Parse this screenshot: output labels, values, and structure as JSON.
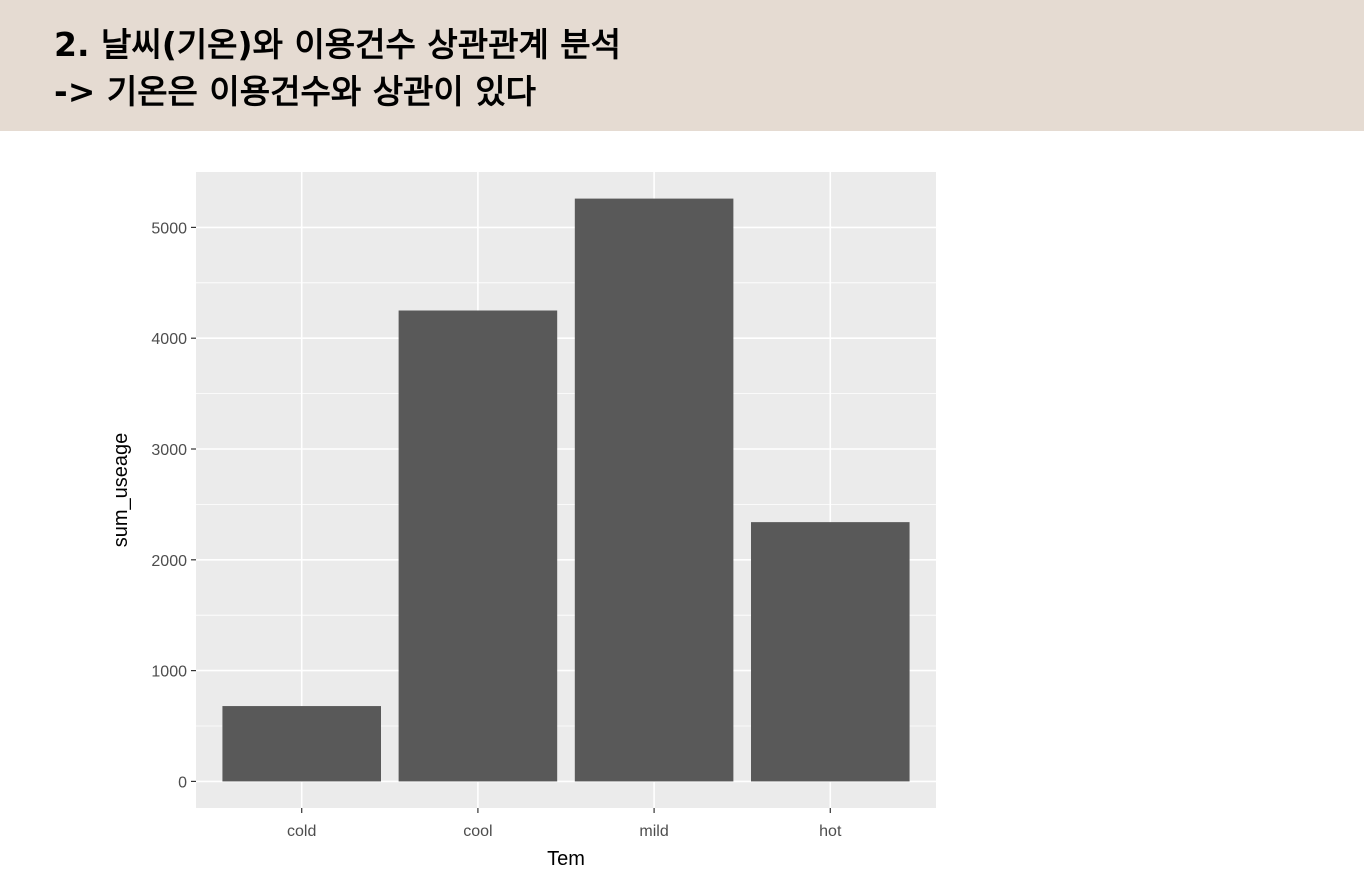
{
  "header": {
    "line1": "2. 날씨(기온)와 이용건수 상관관계 분석",
    "line2": "-> 기온은 이용건수와 상관이 있다",
    "background": "#e5dbd2"
  },
  "chart_data": {
    "type": "bar",
    "categories": [
      "cold",
      "cool",
      "mild",
      "hot"
    ],
    "values": [
      680,
      4250,
      5260,
      2340
    ],
    "xlabel": "Tem",
    "ylabel": "sum_useage",
    "ylim": [
      -240,
      5500
    ],
    "yticks": [
      0,
      1000,
      2000,
      3000,
      4000,
      5000
    ],
    "grid": true,
    "bar_color": "#595959",
    "panel_color": "#ebebeb",
    "grid_color": "#ffffff"
  }
}
